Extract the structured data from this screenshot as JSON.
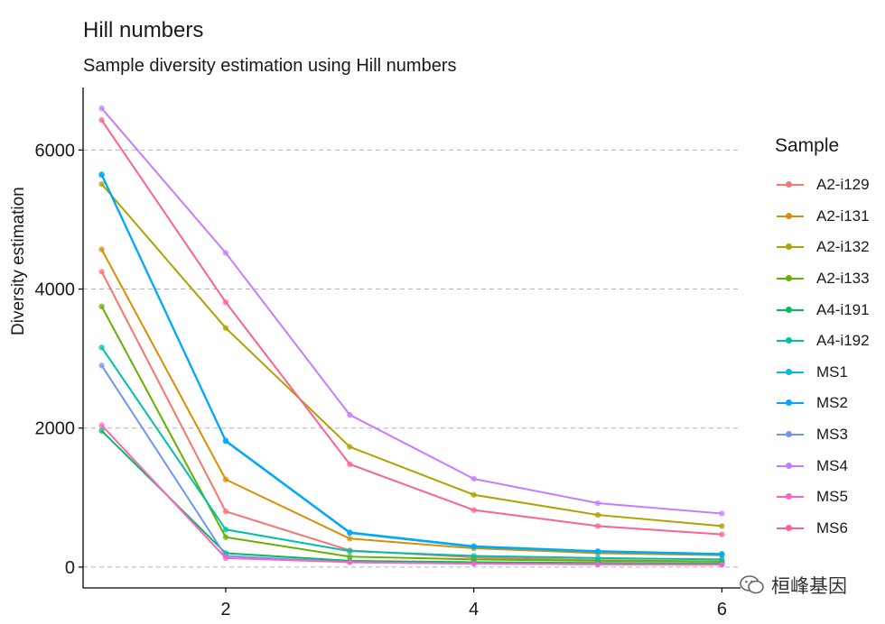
{
  "title": "Hill numbers",
  "subtitle": "Sample diversity estimation using Hill numbers",
  "watermark": "桓峰基因",
  "chart_data": {
    "type": "line",
    "title": "Hill numbers",
    "subtitle": "Sample diversity estimation using Hill numbers",
    "xlabel": "",
    "ylabel": "Diversity estimation",
    "x": [
      1,
      2,
      3,
      4,
      5,
      6
    ],
    "xlim": [
      0.85,
      6.15
    ],
    "ylim": [
      -300,
      6900
    ],
    "xticks": [
      2,
      4,
      6
    ],
    "yticks": [
      0,
      2000,
      4000,
      6000
    ],
    "grid": "horizontal dashed",
    "legend_title": "Sample",
    "legend_position": "right",
    "series": [
      {
        "name": "A2-i129",
        "color": "#F8766D",
        "values": [
          4250,
          800,
          240,
          140,
          100,
          80
        ]
      },
      {
        "name": "A2-i131",
        "color": "#DB8E00",
        "values": [
          4570,
          1260,
          410,
          270,
          200,
          170
        ]
      },
      {
        "name": "A2-i132",
        "color": "#AEA200",
        "values": [
          5510,
          3440,
          1730,
          1040,
          750,
          590
        ]
      },
      {
        "name": "A2-i133",
        "color": "#64B200",
        "values": [
          3750,
          430,
          150,
          110,
          90,
          80
        ]
      },
      {
        "name": "A4-i191",
        "color": "#00BD5C",
        "values": [
          1960,
          200,
          90,
          70,
          60,
          50
        ]
      },
      {
        "name": "A4-i192",
        "color": "#00C1A7",
        "values": [
          3160,
          540,
          230,
          160,
          130,
          110
        ]
      },
      {
        "name": "MS1",
        "color": "#00BADE",
        "values": [
          5640,
          1810,
          490,
          290,
          220,
          180
        ]
      },
      {
        "name": "MS2",
        "color": "#00A6FF",
        "values": [
          5650,
          1820,
          500,
          300,
          230,
          190
        ]
      },
      {
        "name": "MS3",
        "color": "#6F95F8",
        "values": [
          2900,
          160,
          70,
          50,
          40,
          35
        ]
      },
      {
        "name": "MS4",
        "color": "#C77CFF",
        "values": [
          6600,
          4520,
          2190,
          1270,
          920,
          770
        ]
      },
      {
        "name": "MS5",
        "color": "#FF61C3",
        "values": [
          2040,
          130,
          70,
          50,
          40,
          35
        ]
      },
      {
        "name": "MS6",
        "color": "#FF5F96",
        "values": [
          6430,
          3810,
          1480,
          820,
          590,
          470
        ]
      }
    ]
  }
}
